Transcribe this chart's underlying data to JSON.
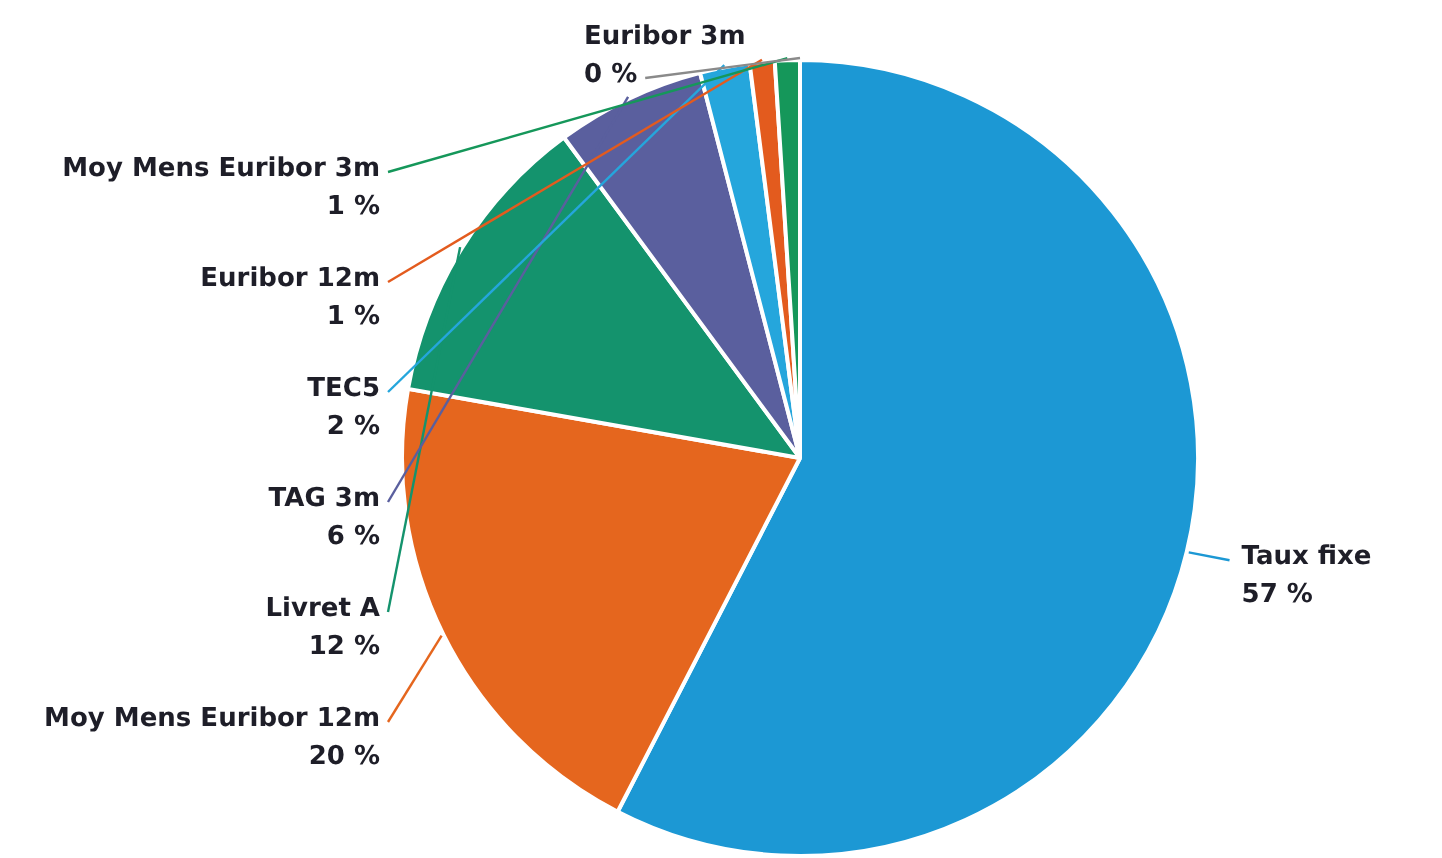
{
  "chart_data": {
    "type": "pie",
    "categories": [
      "Taux fixe",
      "Moy Mens Euribor 12m",
      "Livret A",
      "TAG 3m",
      "TEC5",
      "Euribor 12m",
      "Moy Mens Euribor 3m",
      "Euribor 3m"
    ],
    "values": [
      57,
      20,
      12,
      6,
      2,
      1,
      1,
      0
    ],
    "colors": [
      "#1c98d4",
      "#e5661e",
      "#14936d",
      "#5a5f9e",
      "#25a6dc",
      "#e35b1e",
      "#15975a",
      "#8a8a8a"
    ],
    "value_labels": [
      "57 %",
      "20 %",
      "12 %",
      "6 %",
      "2 %",
      "1 %",
      "1 %",
      "0 %"
    ],
    "legend": false
  }
}
